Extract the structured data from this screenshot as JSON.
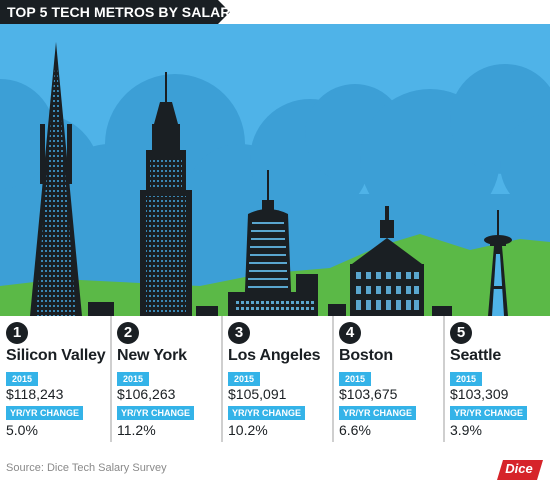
{
  "header": {
    "title_part1": "TOP 5 TECH METROS ",
    "title_part2": "BY SALARY"
  },
  "colors": {
    "sky": "#4fb3e8",
    "cloud": "#3c9fd6",
    "grass": "#5bb947",
    "building": "#1a1f23",
    "badge": "#34b3e8",
    "logo": "#d6242a"
  },
  "metros": [
    {
      "rank": "1",
      "city": "Silicon Valley",
      "year": "2015",
      "salary": "$118,243",
      "change_label": "YR/YR CHANGE",
      "change": "5.0%"
    },
    {
      "rank": "2",
      "city": "New York",
      "year": "2015",
      "salary": "$106,263",
      "change_label": "YR/YR CHANGE",
      "change": "11.2%"
    },
    {
      "rank": "3",
      "city": "Los Angeles",
      "year": "2015",
      "salary": "$105,091",
      "change_label": "YR/YR CHANGE",
      "change": "10.2%"
    },
    {
      "rank": "4",
      "city": "Boston",
      "year": "2015",
      "salary": "$103,675",
      "change_label": "YR/YR CHANGE",
      "change": "6.6%"
    },
    {
      "rank": "5",
      "city": "Seattle",
      "year": "2015",
      "salary": "$103,309",
      "change_label": "YR/YR CHANGE",
      "change": "3.9%"
    }
  ],
  "footer": {
    "source": "Source: Dice Tech Salary Survey",
    "logo_text": "Dice"
  }
}
